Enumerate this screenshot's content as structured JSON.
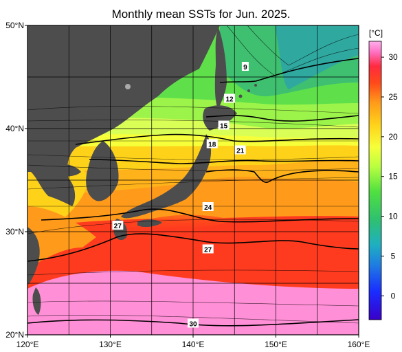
{
  "map": {
    "title": "Monthly mean SSTs for Jun. 2025.",
    "lat_ticks": [
      {
        "value": 50,
        "label": "50°N"
      },
      {
        "value": 40,
        "label": "40°N"
      },
      {
        "value": 30,
        "label": "30°N"
      },
      {
        "value": 20,
        "label": "20°N"
      }
    ],
    "lon_ticks": [
      {
        "value": 120,
        "label": "120°E"
      },
      {
        "value": 130,
        "label": "130°E"
      },
      {
        "value": 140,
        "label": "140°E"
      },
      {
        "value": 150,
        "label": "150°E"
      },
      {
        "value": 160,
        "label": "160°E"
      }
    ],
    "lon_range": [
      120,
      160
    ],
    "lat_range": [
      20,
      50
    ],
    "grid": true,
    "contour_labels": [
      {
        "text": "9",
        "lon": 146.3,
        "lat": 46.0
      },
      {
        "text": "12",
        "lon": 144.4,
        "lat": 42.9
      },
      {
        "text": "15",
        "lon": 143.7,
        "lat": 40.3
      },
      {
        "text": "18",
        "lon": 142.3,
        "lat": 38.5
      },
      {
        "text": "21",
        "lon": 145.7,
        "lat": 37.9
      },
      {
        "text": "24",
        "lon": 141.8,
        "lat": 32.4
      },
      {
        "text": "27",
        "lon": 130.9,
        "lat": 30.6
      },
      {
        "text": "27",
        "lon": 141.8,
        "lat": 28.3
      },
      {
        "text": "30",
        "lon": 140.0,
        "lat": 21.1
      }
    ]
  },
  "colorbar": {
    "unit": "[°C]",
    "range": [
      -3,
      32
    ],
    "ticks": [
      0,
      5,
      10,
      15,
      20,
      25,
      30
    ],
    "tick_labels": [
      "0",
      "5",
      "10",
      "15",
      "20",
      "25",
      "30"
    ]
  },
  "colors": {
    "land": "#4d4d4d",
    "warm_30": "#ff8fd6",
    "warm_27": "#ff3b1f",
    "mid_24": "#ff9a1a",
    "mid_21": "#ffd21a",
    "cool_15": "#d9ff57",
    "cold_9": "#40c060"
  }
}
